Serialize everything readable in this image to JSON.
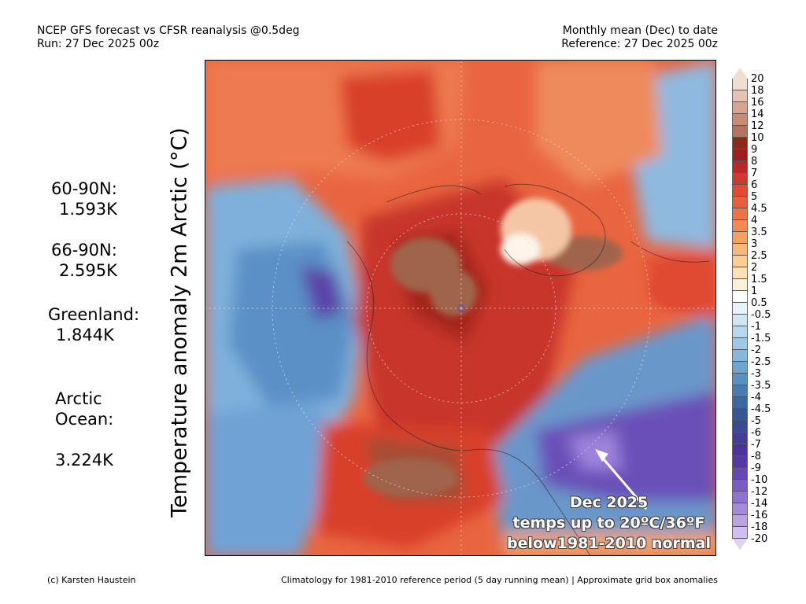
{
  "header": {
    "title_line1": "NCEP GFS forecast vs CFSR reanalysis @0.5deg",
    "title_line2": "Run: 27 Dec 2025 00z",
    "right_line1": "Monthly mean (Dec) to date",
    "right_line2": "Reference: 27 Dec 2025 00z"
  },
  "y_axis_label": "Temperature anomaly 2m Arctic (°C)",
  "stats": [
    {
      "label": "60-90N:",
      "value": "1.593K"
    },
    {
      "label": "66-90N:",
      "value": "2.595K"
    },
    {
      "label": "Greenland:",
      "value": "1.844K"
    },
    {
      "label": "Arctic\nOcean:",
      "value": "3.224K"
    }
  ],
  "annotation": {
    "line1": "Dec 2025",
    "line2": "temps up to 20ºC/36ºF",
    "line3": "below1981-2010 normal"
  },
  "colorbar": {
    "labels": [
      "20",
      "18",
      "16",
      "14",
      "12",
      "10",
      "9",
      "8",
      "7",
      "6",
      "5",
      "4.5",
      "4",
      "3.5",
      "3",
      "2.5",
      "2",
      "1.5",
      "1",
      "0.5",
      "-0.5",
      "-1",
      "-1.5",
      "-2",
      "-2.5",
      "-3",
      "-3.5",
      "-4",
      "-4.5",
      "-5",
      "-6",
      "-7",
      "-8",
      "-9",
      "-10",
      "-12",
      "-14",
      "-16",
      "-18",
      "-20"
    ],
    "colors": [
      "#f2ddd3",
      "#e6c2b3",
      "#d7a58f",
      "#c88c74",
      "#b47260",
      "#8c2a18",
      "#9f1f1c",
      "#b92828",
      "#cd3a2e",
      "#df4b33",
      "#e85f3c",
      "#ee7446",
      "#f38a53",
      "#f5a162",
      "#f8b877",
      "#fbcd92",
      "#fde0b3",
      "#fff0d8",
      "#ffffff",
      "#e8f3fb",
      "#d0e6f5",
      "#b8d8ee",
      "#9dc8e6",
      "#84b8dd",
      "#6ca5d1",
      "#5791c2",
      "#467cb4",
      "#3a68a3",
      "#335794",
      "#3a4b96",
      "#433f98",
      "#4a3499",
      "#5637a6",
      "#6448b4",
      "#7a5cc4",
      "#8f73d0",
      "#a58ad9",
      "#bba3e3",
      "#d0bfee"
    ],
    "top_triangle_color": "#f2ddd3",
    "bottom_triangle_color": "#ded2f5"
  },
  "footer": {
    "left": "(c) Karsten Haustein",
    "right": "Climatology for 1981-2010 reference period (5 day running mean) | Approximate grid box anomalies"
  }
}
